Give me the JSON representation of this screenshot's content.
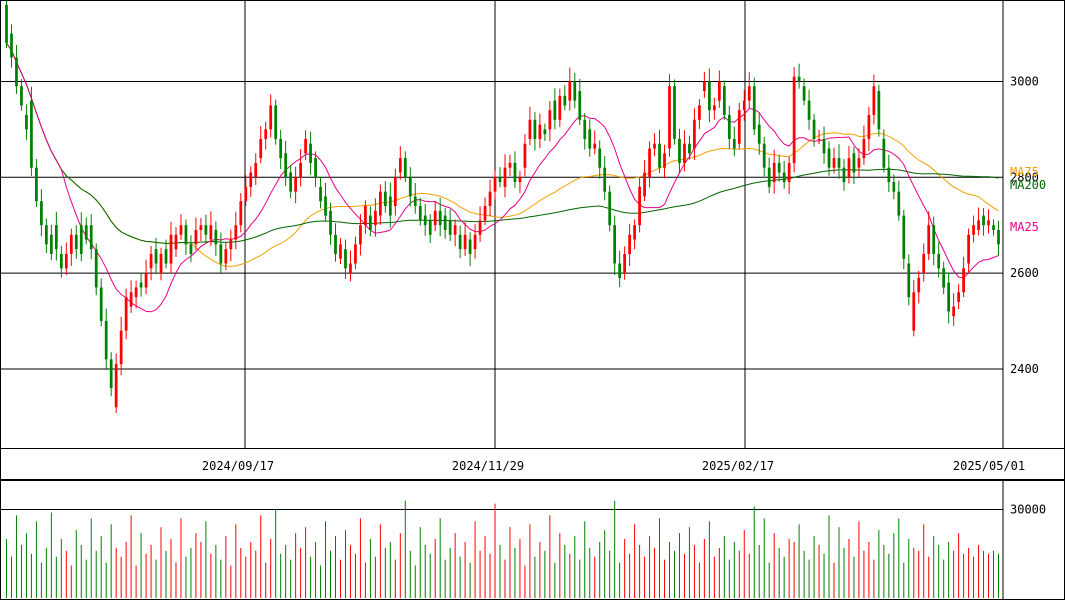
{
  "chart_data": {
    "type": "candlestick",
    "title": "",
    "price_axis": {
      "ticks": [
        {
          "value": 2400,
          "label": "2400"
        },
        {
          "value": 2600,
          "label": "2600"
        },
        {
          "value": 2800,
          "label": "2800"
        },
        {
          "value": 3000,
          "label": "3000"
        }
      ],
      "range": [
        2235,
        3170
      ]
    },
    "volume_axis": {
      "ticks": [
        {
          "value": 30000,
          "label": "30000"
        }
      ],
      "range": [
        0,
        40000
      ]
    },
    "date_ticks": [
      "2024/09/17",
      "2024/11/29",
      "2025/02/17",
      "2025/05/01"
    ],
    "legend": [
      {
        "key": "ma75",
        "label": "MA75",
        "color": "#f5a000"
      },
      {
        "key": "ma200",
        "label": "MA200",
        "color": "#006400"
      },
      {
        "key": "ma25",
        "label": "MA25",
        "color": "#e6008c"
      }
    ],
    "colors": {
      "up": "#ff0000",
      "down": "#008000",
      "grid": "#000000"
    },
    "candles_oc": [
      [
        3160,
        3080
      ],
      [
        3100,
        3050
      ],
      [
        3050,
        2990
      ],
      [
        2990,
        2950
      ],
      [
        2930,
        2900
      ],
      [
        2960,
        2820
      ],
      [
        2820,
        2750
      ],
      [
        2750,
        2700
      ],
      [
        2700,
        2660
      ],
      [
        2680,
        2640
      ],
      [
        2700,
        2650
      ],
      [
        2640,
        2610
      ],
      [
        2610,
        2640
      ],
      [
        2640,
        2680
      ],
      [
        2680,
        2650
      ],
      [
        2700,
        2640
      ],
      [
        2700,
        2670
      ],
      [
        2700,
        2650
      ],
      [
        2650,
        2570
      ],
      [
        2570,
        2500
      ],
      [
        2500,
        2420
      ],
      [
        2420,
        2360
      ],
      [
        2320,
        2410
      ],
      [
        2410,
        2480
      ],
      [
        2480,
        2550
      ],
      [
        2530,
        2560
      ],
      [
        2550,
        2570
      ],
      [
        2580,
        2570
      ],
      [
        2570,
        2600
      ],
      [
        2610,
        2640
      ],
      [
        2650,
        2620
      ],
      [
        2600,
        2640
      ],
      [
        2650,
        2620
      ],
      [
        2620,
        2680
      ],
      [
        2650,
        2680
      ],
      [
        2680,
        2700
      ],
      [
        2700,
        2660
      ],
      [
        2660,
        2640
      ],
      [
        2660,
        2690
      ],
      [
        2690,
        2700
      ],
      [
        2700,
        2680
      ],
      [
        2670,
        2700
      ],
      [
        2690,
        2660
      ],
      [
        2660,
        2620
      ],
      [
        2620,
        2650
      ],
      [
        2650,
        2670
      ],
      [
        2670,
        2700
      ],
      [
        2700,
        2750
      ],
      [
        2750,
        2780
      ],
      [
        2780,
        2810
      ],
      [
        2800,
        2830
      ],
      [
        2840,
        2880
      ],
      [
        2880,
        2900
      ],
      [
        2900,
        2950
      ],
      [
        2950,
        2880
      ],
      [
        2880,
        2840
      ],
      [
        2850,
        2800
      ],
      [
        2810,
        2770
      ],
      [
        2770,
        2800
      ],
      [
        2800,
        2830
      ],
      [
        2850,
        2880
      ],
      [
        2870,
        2830
      ],
      [
        2840,
        2800
      ],
      [
        2780,
        2750
      ],
      [
        2760,
        2720
      ],
      [
        2730,
        2680
      ],
      [
        2680,
        2640
      ],
      [
        2630,
        2660
      ],
      [
        2650,
        2610
      ],
      [
        2600,
        2620
      ],
      [
        2620,
        2660
      ],
      [
        2660,
        2700
      ],
      [
        2700,
        2740
      ],
      [
        2720,
        2690
      ],
      [
        2700,
        2730
      ],
      [
        2720,
        2770
      ],
      [
        2770,
        2740
      ],
      [
        2760,
        2720
      ],
      [
        2740,
        2800
      ],
      [
        2810,
        2840
      ],
      [
        2840,
        2800
      ],
      [
        2800,
        2760
      ],
      [
        2760,
        2740
      ],
      [
        2740,
        2710
      ],
      [
        2720,
        2700
      ],
      [
        2710,
        2680
      ],
      [
        2700,
        2730
      ],
      [
        2730,
        2700
      ],
      [
        2720,
        2690
      ],
      [
        2710,
        2680
      ],
      [
        2680,
        2700
      ],
      [
        2680,
        2650
      ],
      [
        2650,
        2680
      ],
      [
        2670,
        2640
      ],
      [
        2650,
        2680
      ],
      [
        2680,
        2710
      ],
      [
        2710,
        2740
      ],
      [
        2740,
        2770
      ],
      [
        2770,
        2800
      ],
      [
        2800,
        2790
      ],
      [
        2780,
        2820
      ],
      [
        2820,
        2830
      ],
      [
        2830,
        2790
      ],
      [
        2790,
        2800
      ],
      [
        2820,
        2870
      ],
      [
        2880,
        2920
      ],
      [
        2920,
        2880
      ],
      [
        2880,
        2910
      ],
      [
        2900,
        2890
      ],
      [
        2900,
        2940
      ],
      [
        2960,
        2920
      ],
      [
        2920,
        2970
      ],
      [
        2970,
        2950
      ],
      [
        2960,
        3000
      ],
      [
        3000,
        2960
      ],
      [
        2980,
        2920
      ],
      [
        2920,
        2880
      ],
      [
        2900,
        2860
      ],
      [
        2860,
        2870
      ],
      [
        2860,
        2820
      ],
      [
        2820,
        2770
      ],
      [
        2770,
        2700
      ],
      [
        2700,
        2620
      ],
      [
        2620,
        2590
      ],
      [
        2600,
        2640
      ],
      [
        2640,
        2680
      ],
      [
        2670,
        2700
      ],
      [
        2700,
        2780
      ],
      [
        2760,
        2810
      ],
      [
        2800,
        2860
      ],
      [
        2860,
        2870
      ],
      [
        2870,
        2820
      ],
      [
        2820,
        2850
      ],
      [
        2860,
        2990
      ],
      [
        2990,
        2880
      ],
      [
        2880,
        2830
      ],
      [
        2830,
        2870
      ],
      [
        2870,
        2850
      ],
      [
        2860,
        2920
      ],
      [
        2920,
        2950
      ],
      [
        2980,
        3000
      ],
      [
        3000,
        2940
      ],
      [
        2940,
        2950
      ],
      [
        2960,
        3000
      ],
      [
        2990,
        2930
      ],
      [
        2930,
        2880
      ],
      [
        2880,
        2860
      ],
      [
        2870,
        2940
      ],
      [
        2940,
        2960
      ],
      [
        2960,
        2990
      ],
      [
        2990,
        2900
      ],
      [
        2910,
        2870
      ],
      [
        2870,
        2820
      ],
      [
        2820,
        2780
      ],
      [
        2790,
        2830
      ],
      [
        2830,
        2810
      ],
      [
        2810,
        2790
      ],
      [
        2790,
        2830
      ],
      [
        2830,
        3010
      ],
      [
        3010,
        3000
      ],
      [
        2990,
        2960
      ],
      [
        2960,
        2920
      ],
      [
        2920,
        2880
      ],
      [
        2880,
        2880
      ],
      [
        2880,
        2850
      ],
      [
        2860,
        2820
      ],
      [
        2820,
        2840
      ],
      [
        2840,
        2820
      ],
      [
        2820,
        2790
      ],
      [
        2800,
        2840
      ],
      [
        2850,
        2810
      ],
      [
        2820,
        2840
      ],
      [
        2840,
        2880
      ],
      [
        2880,
        2930
      ],
      [
        2930,
        2990
      ],
      [
        2980,
        2900
      ],
      [
        2880,
        2820
      ],
      [
        2820,
        2790
      ],
      [
        2790,
        2770
      ],
      [
        2770,
        2720
      ],
      [
        2720,
        2630
      ],
      [
        2620,
        2550
      ],
      [
        2480,
        2560
      ],
      [
        2560,
        2590
      ],
      [
        2600,
        2640
      ],
      [
        2640,
        2700
      ],
      [
        2700,
        2640
      ],
      [
        2640,
        2610
      ],
      [
        2610,
        2570
      ],
      [
        2580,
        2520
      ],
      [
        2510,
        2530
      ],
      [
        2540,
        2560
      ],
      [
        2560,
        2610
      ],
      [
        2620,
        2680
      ],
      [
        2680,
        2700
      ],
      [
        2690,
        2710
      ],
      [
        2720,
        2700
      ],
      [
        2700,
        2710
      ],
      [
        2700,
        2690
      ],
      [
        2690,
        2660
      ]
    ],
    "volumes": [
      20000,
      14000,
      28000,
      18000,
      22000,
      15000,
      26000,
      12000,
      17000,
      29000,
      14000,
      20000,
      16000,
      11000,
      23000,
      18000,
      13000,
      27000,
      16000,
      21000,
      12000,
      25000,
      17000,
      14000,
      19000,
      28000,
      11000,
      22000,
      15000,
      18000,
      13000,
      24000,
      16000,
      20000,
      12000,
      27000,
      14000,
      17000,
      22000,
      19000,
      26000,
      15000,
      18000,
      13000,
      21000,
      11000,
      25000,
      17000,
      14000,
      19000,
      16000,
      28000,
      12000,
      20000,
      30000,
      15000,
      18000,
      13000,
      22000,
      17000,
      24000,
      14000,
      19000,
      11000,
      26000,
      16000,
      21000,
      13000,
      23000,
      18000,
      15000,
      27000,
      12000,
      20000,
      14000,
      25000,
      17000,
      19000,
      13000,
      22000,
      33000,
      16000,
      11000,
      24000,
      18000,
      15000,
      20000,
      27000,
      13000,
      17000,
      22000,
      14000,
      19000,
      12000,
      26000,
      16000,
      21000,
      15000,
      32000,
      18000,
      13000,
      24000,
      17000,
      20000,
      11000,
      25000,
      14000,
      19000,
      16000,
      28000,
      12000,
      22000,
      18000,
      15000,
      21000,
      13000,
      26000,
      17000,
      14000,
      19000,
      23000,
      16000,
      33000,
      12000,
      20000,
      15000,
      25000,
      18000,
      14000,
      21000,
      17000,
      27000,
      13000,
      19000,
      16000,
      22000,
      15000,
      24000,
      18000,
      12000,
      20000,
      26000,
      14000,
      17000,
      21000,
      13000,
      19000,
      16000,
      23000,
      15000,
      31000,
      18000,
      27000,
      12000,
      22000,
      17000,
      14000,
      20000,
      19000,
      25000,
      16000,
      13000,
      21000,
      18000,
      15000,
      28000,
      12000,
      24000,
      17000,
      20000,
      14000,
      26000,
      16000,
      19000,
      13000,
      23000,
      18000,
      15000,
      22000,
      27000,
      12000,
      20000,
      17000,
      16000,
      25000,
      14000,
      21000,
      18000,
      13000,
      19000,
      16000,
      22000,
      15000,
      17000,
      14000,
      18000,
      16000,
      15000,
      16000,
      15000
    ]
  }
}
